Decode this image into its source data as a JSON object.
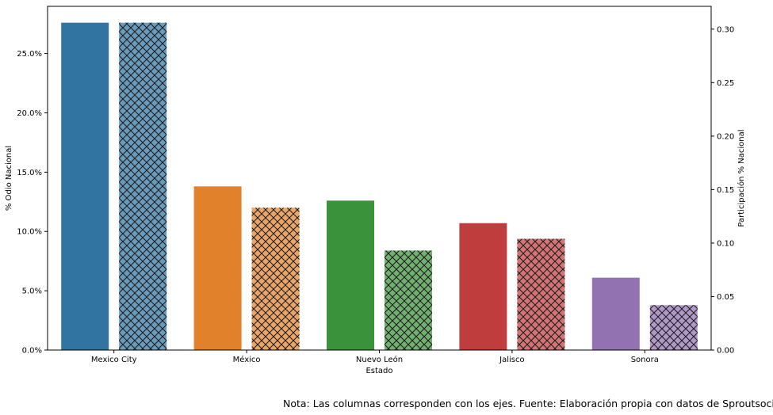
{
  "chart_data": {
    "type": "bar",
    "xlabel": "Estado",
    "ylabel_left": "% Odio Nacional",
    "ylabel_right": "Participación % Nacional",
    "categories": [
      "Mexico City",
      "México",
      "Nuevo León",
      "Jalisco",
      "Sonora"
    ],
    "colors": [
      "#3274a1",
      "#e1812c",
      "#3a923a",
      "#c03d3e",
      "#9372b2"
    ],
    "series": [
      {
        "axis": "left",
        "hatch": false,
        "values": [
          27.6,
          13.8,
          12.6,
          10.7,
          6.1
        ]
      },
      {
        "axis": "right",
        "hatch": true,
        "values": [
          0.306,
          0.133,
          0.093,
          0.104,
          0.042
        ]
      }
    ],
    "left_ticks": [
      "0.0%",
      "5.0%",
      "10.0%",
      "15.0%",
      "20.0%",
      "25.0%"
    ],
    "left_tick_values": [
      0,
      5,
      10,
      15,
      20,
      25
    ],
    "ylim_left": [
      0,
      28.98
    ],
    "right_ticks": [
      "0.00",
      "0.05",
      "0.10",
      "0.15",
      "0.20",
      "0.25",
      "0.30"
    ],
    "right_tick_values": [
      0,
      0.05,
      0.1,
      0.15,
      0.2,
      0.25,
      0.3
    ],
    "ylim_right": [
      0,
      0.3213
    ],
    "grid": false
  },
  "note": "Nota: Las columnas corresponden con los ejes. Fuente: Elaboración propia con datos de Sproutsocial."
}
